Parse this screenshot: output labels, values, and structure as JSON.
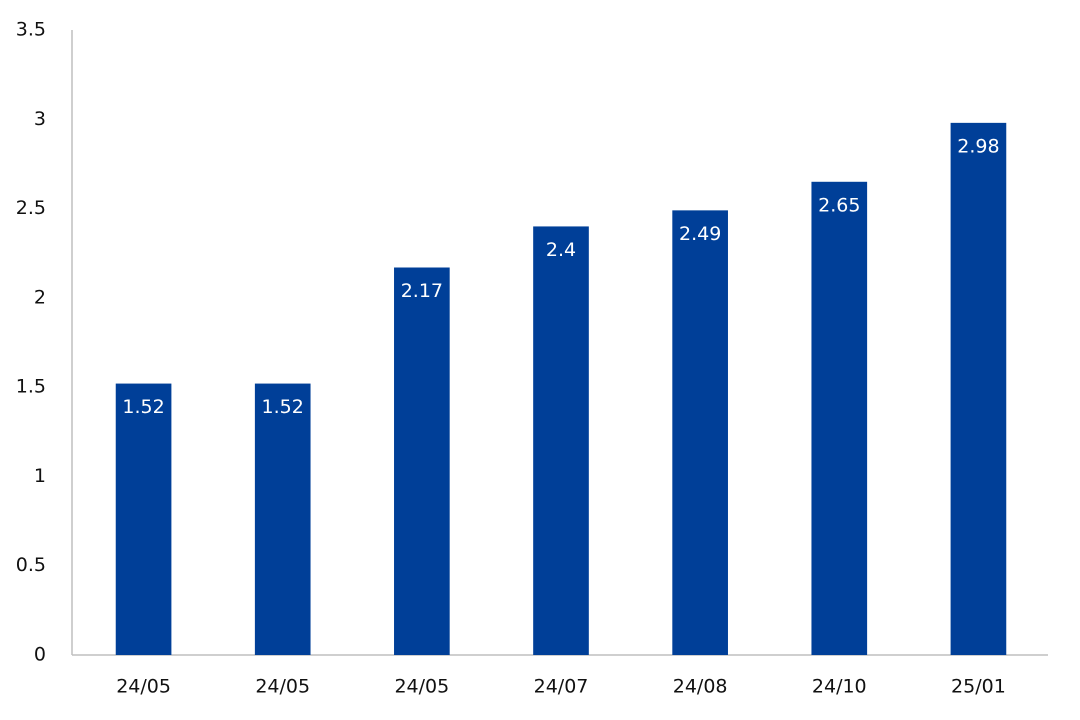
{
  "chart_data": {
    "type": "bar",
    "categories": [
      "24/05",
      "24/05",
      "24/05",
      "24/07",
      "24/08",
      "24/10",
      "25/01"
    ],
    "values": [
      1.52,
      1.52,
      2.17,
      2.4,
      2.49,
      2.65,
      2.98
    ],
    "color": "#003f98",
    "ylim": [
      0,
      3.5
    ],
    "yticks": [
      0,
      0.5,
      1,
      1.5,
      2,
      2.5,
      3,
      3.5
    ],
    "grid": false
  }
}
